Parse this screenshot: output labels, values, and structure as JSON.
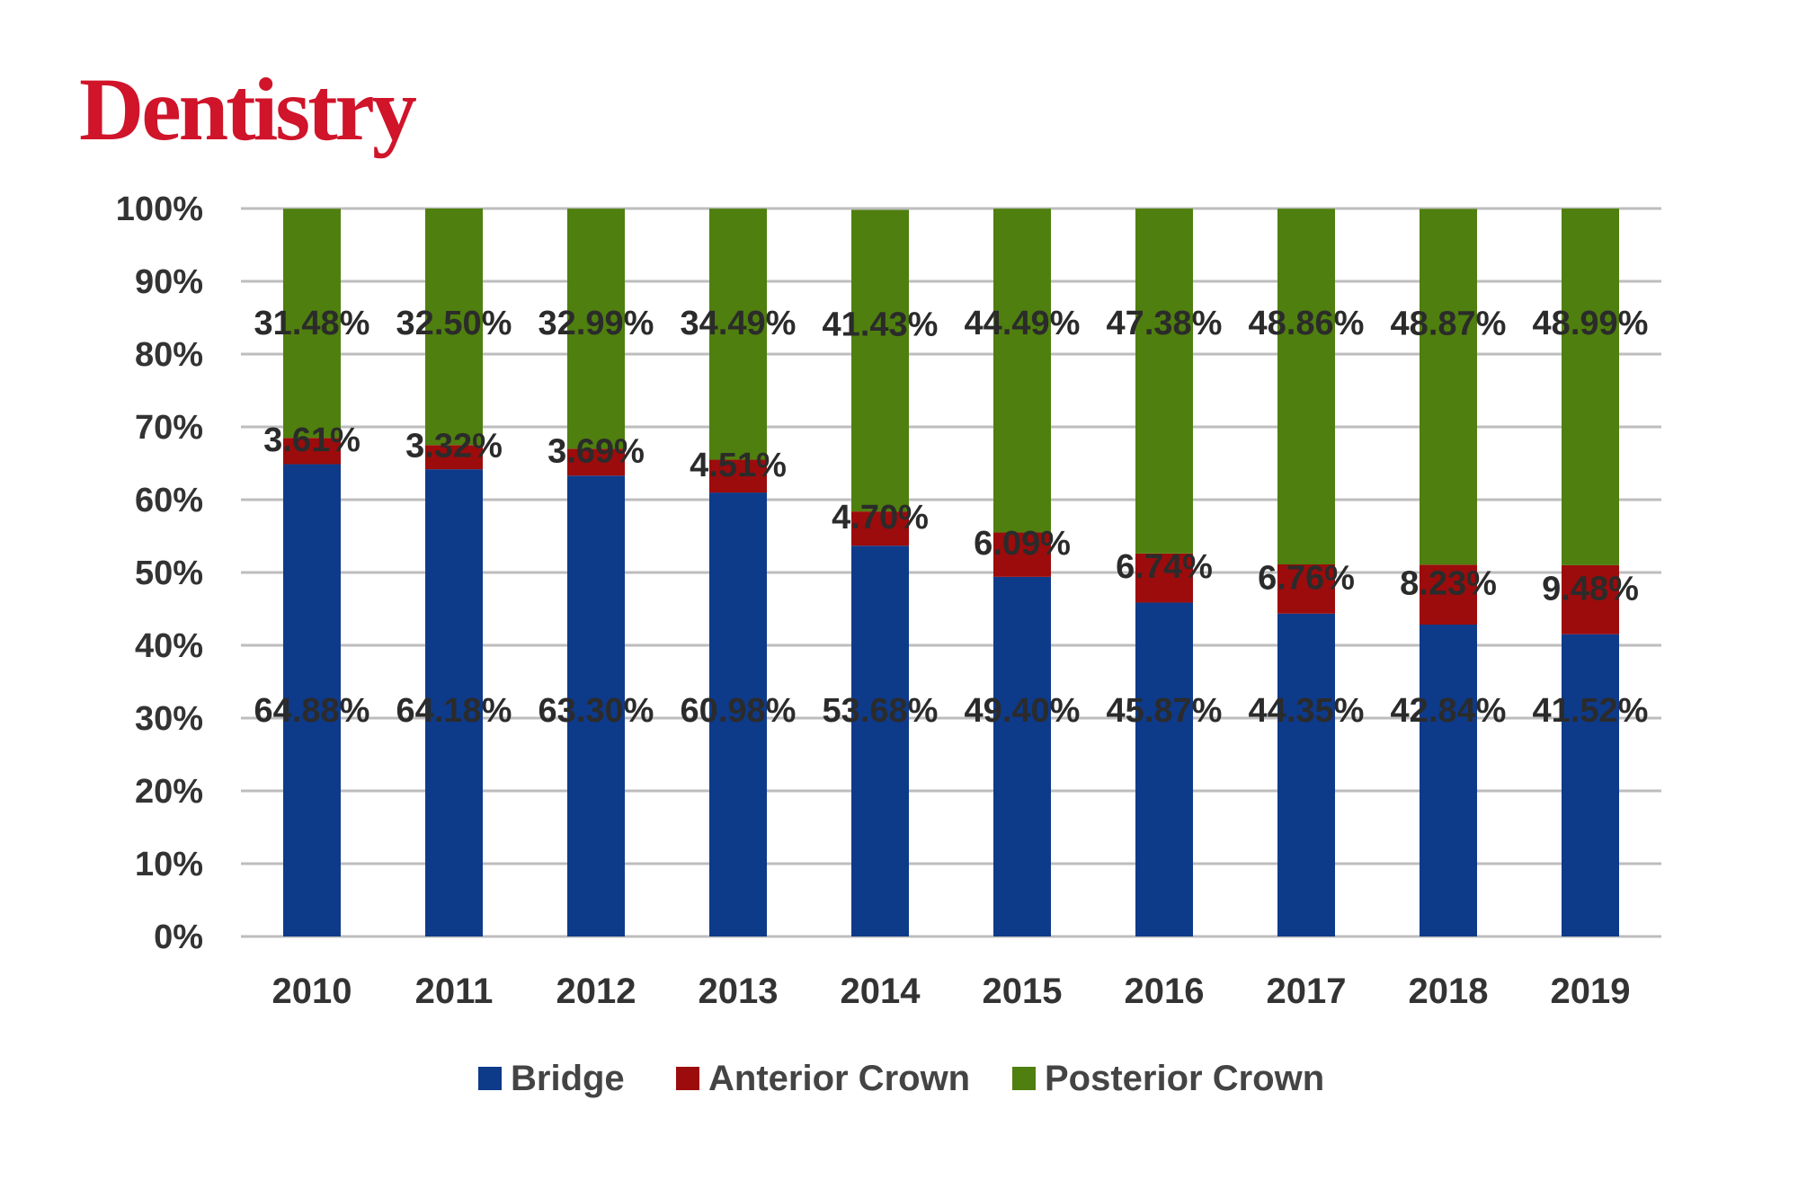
{
  "brand": {
    "name": "Dentistry",
    "color": "#d0142a"
  },
  "chart_data": {
    "type": "bar",
    "stacked": true,
    "categories": [
      "2010",
      "2011",
      "2012",
      "2013",
      "2014",
      "2015",
      "2016",
      "2017",
      "2018",
      "2019"
    ],
    "series": [
      {
        "name": "Bridge",
        "color": "#0e3a8a",
        "values": [
          64.88,
          64.18,
          63.3,
          60.98,
          53.68,
          49.4,
          45.87,
          44.35,
          42.84,
          41.52
        ],
        "labels": [
          "64.88%",
          "64.18%",
          "63.30%",
          "60.98%",
          "53.68%",
          "49.40%",
          "45.87%",
          "44.35%",
          "42.84%",
          "41.52%"
        ]
      },
      {
        "name": "Anterior Crown",
        "color": "#9c0c0c",
        "values": [
          3.61,
          3.32,
          3.69,
          4.51,
          4.7,
          6.09,
          6.74,
          6.76,
          8.23,
          9.48
        ],
        "labels": [
          "3.61%",
          "3.32%",
          "3.69%",
          "4.51%",
          "4.70%",
          "6.09%",
          "6.74%",
          "6.76%",
          "8.23%",
          "9.48%"
        ]
      },
      {
        "name": "Posterior Crown",
        "color": "#4f7f0e",
        "values": [
          31.48,
          32.5,
          32.99,
          34.49,
          41.43,
          44.49,
          47.38,
          48.86,
          48.87,
          48.99
        ],
        "labels": [
          "31.48%",
          "32.50%",
          "32.99%",
          "34.49%",
          "41.43%",
          "44.49%",
          "47.38%",
          "48.86%",
          "48.87%",
          "48.99%"
        ]
      }
    ],
    "yticks": [
      "0%",
      "10%",
      "20%",
      "30%",
      "40%",
      "50%",
      "60%",
      "70%",
      "80%",
      "90%",
      "100%"
    ],
    "ylim": [
      0,
      100
    ],
    "grid": true,
    "legend_position": "bottom",
    "title": "",
    "xlabel": "",
    "ylabel": ""
  }
}
